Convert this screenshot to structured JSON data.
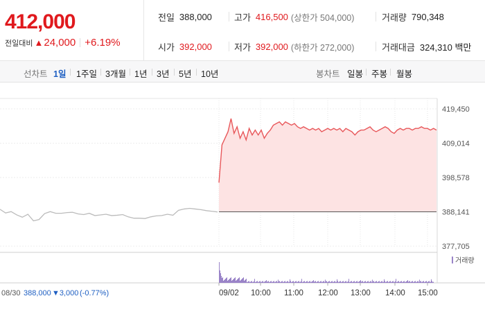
{
  "summary": {
    "current_price": "412,000",
    "change_label": "전일대비",
    "change_icon": "up-triangle-icon",
    "change_amount": "24,000",
    "change_rate": "+6.19%",
    "up_color": "#e0191d",
    "prev_close": {
      "label": "전일",
      "value": "388,000"
    },
    "open": {
      "label": "시가",
      "value": "392,000"
    },
    "high": {
      "label": "고가",
      "value": "416,500",
      "limit": "(상한가 504,000)"
    },
    "low": {
      "label": "저가",
      "value": "392,000",
      "limit": "(하한가 272,000)"
    },
    "volume": {
      "label": "거래량",
      "value": "790,348"
    },
    "amount": {
      "label": "거래대금",
      "value": "324,310 백만"
    }
  },
  "tabs": {
    "line_chart_label": "선차트",
    "periods": [
      "1일",
      "1주일",
      "3개월",
      "1년",
      "3년",
      "5년",
      "10년"
    ],
    "active_period": "1일",
    "candle_chart_label": "봉차트",
    "candle_periods": [
      "일봉",
      "주봉",
      "월봉"
    ]
  },
  "chart_data": {
    "type": "line",
    "y_ticks": [
      "419,450",
      "409,014",
      "398,578",
      "388,141",
      "377,705"
    ],
    "ylim": [
      377705,
      419450
    ],
    "prev_close_line": 388141,
    "x_labels": [
      "08/30",
      "09/02",
      "10:00",
      "11:00",
      "12:00",
      "13:00",
      "14:00",
      "15:00"
    ],
    "prev_day_summary": {
      "date": "08/30",
      "close": "388,000",
      "change": "▼3,000",
      "rate": "(-0.77%)"
    },
    "volume_legend": "거래량",
    "series": [
      {
        "values": [
          388900,
          387800,
          388200,
          387200,
          386500,
          387400,
          385400,
          385800,
          387600,
          388200,
          387700,
          387700,
          387900,
          388000,
          387500,
          387300,
          387700,
          387000,
          387200,
          387400,
          387000,
          387100,
          387300,
          386600,
          386200,
          386200,
          386100,
          386600,
          386900,
          387000,
          387400,
          387100,
          388600,
          389000,
          389200,
          389000,
          388800,
          388500,
          388300,
          388100
        ],
        "color": "#bbbbbb"
      },
      {
        "values": [
          397000,
          408500,
          410500,
          412500,
          416500,
          412000,
          414000,
          410500,
          412500,
          410000,
          413500,
          411500,
          413000,
          411500,
          413000,
          410500,
          412000,
          413000,
          414500,
          415000,
          415500,
          414500,
          415500,
          415000,
          414500,
          415000,
          414000,
          413500,
          414000,
          413500,
          413000,
          413500,
          413000,
          413500,
          412500,
          413000,
          413500,
          413000,
          413500,
          413000,
          413500,
          412500,
          413500,
          413000,
          412500,
          411500,
          412500,
          413000,
          413000,
          413500,
          414000,
          413000,
          412500,
          413000,
          413500,
          414000,
          413500,
          412500,
          412000,
          413000,
          413500,
          413000,
          413500,
          413500,
          413000,
          413500,
          413500,
          414000,
          413500,
          413500,
          413000,
          413500,
          413000
        ],
        "color": "#e8575a"
      }
    ],
    "volume_color": "#9a84c8",
    "fill_color": "#fde3e3"
  }
}
